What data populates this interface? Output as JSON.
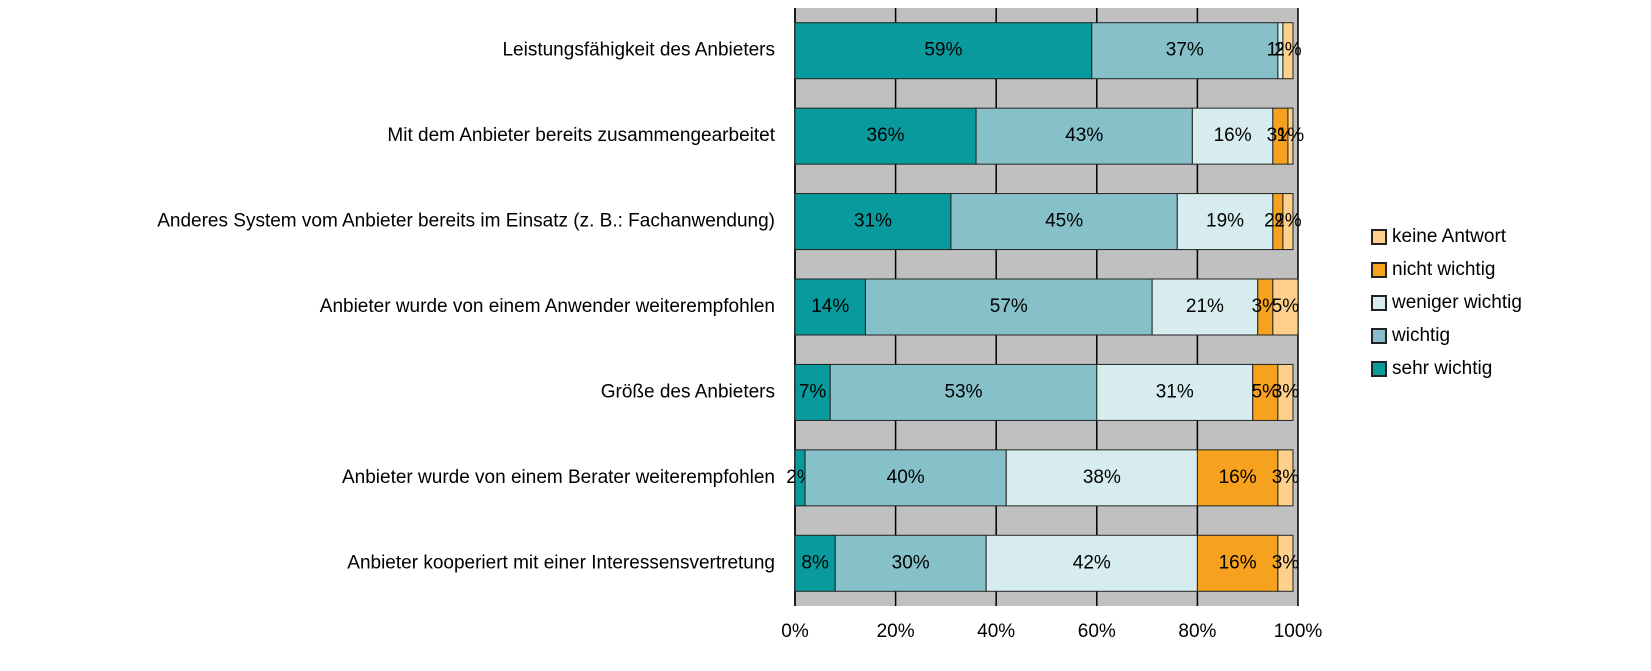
{
  "chart_data": {
    "type": "bar",
    "orientation": "horizontal",
    "stacked": true,
    "categories": [
      "Leistungsfähigkeit des Anbieters",
      "Mit dem Anbieter bereits zusammengearbeitet",
      "Anderes System vom Anbieter bereits im Einsatz (z. B.: Fachanwendung)",
      "Anbieter wurde von einem Anwender weiterempfohlen",
      "Größe des Anbieters",
      "Anbieter wurde von einem Berater weiterempfohlen",
      "Anbieter kooperiert mit einer Interessensvertretung"
    ],
    "series": [
      {
        "name": "sehr wichtig",
        "color": "#089a9c",
        "values": [
          59,
          36,
          31,
          14,
          7,
          2,
          8
        ],
        "value_labels": [
          "59%",
          "36%",
          "31%",
          "14%",
          "7%",
          "2%",
          "8%"
        ]
      },
      {
        "name": "wichtig",
        "color": "#86c0c9",
        "values": [
          37,
          43,
          45,
          57,
          53,
          40,
          30
        ],
        "value_labels": [
          "37%",
          "43%",
          "45%",
          "57%",
          "53%",
          "40%",
          "30%"
        ]
      },
      {
        "name": "weniger wichtig",
        "color": "#d6ecef",
        "values": [
          1,
          16,
          19,
          21,
          31,
          38,
          42
        ],
        "value_labels": [
          "1%",
          "16%",
          "19%",
          "21%",
          "31%",
          "38%",
          "42%"
        ]
      },
      {
        "name": "nicht wichtig",
        "color": "#f7a21e",
        "values": [
          null,
          3,
          2,
          3,
          5,
          16,
          16
        ],
        "value_labels": [
          null,
          "3%",
          "2%",
          "3%",
          "5%",
          "16%",
          "16%"
        ]
      },
      {
        "name": "keine Antwort",
        "color": "#fdd08c",
        "values": [
          2,
          1,
          2,
          5,
          3,
          3,
          3
        ],
        "value_labels": [
          "2%",
          "1%",
          "2%",
          "5%",
          "3%",
          "3%",
          "3%"
        ]
      }
    ],
    "xlim": [
      0,
      100
    ],
    "xticks": [
      {
        "value": 0,
        "label": "0%"
      },
      {
        "value": 20,
        "label": "20%"
      },
      {
        "value": 40,
        "label": "40%"
      },
      {
        "value": 60,
        "label": "60%"
      },
      {
        "value": 80,
        "label": "80%"
      },
      {
        "value": 100,
        "label": "100%"
      }
    ],
    "grid": true,
    "legend": "right"
  }
}
